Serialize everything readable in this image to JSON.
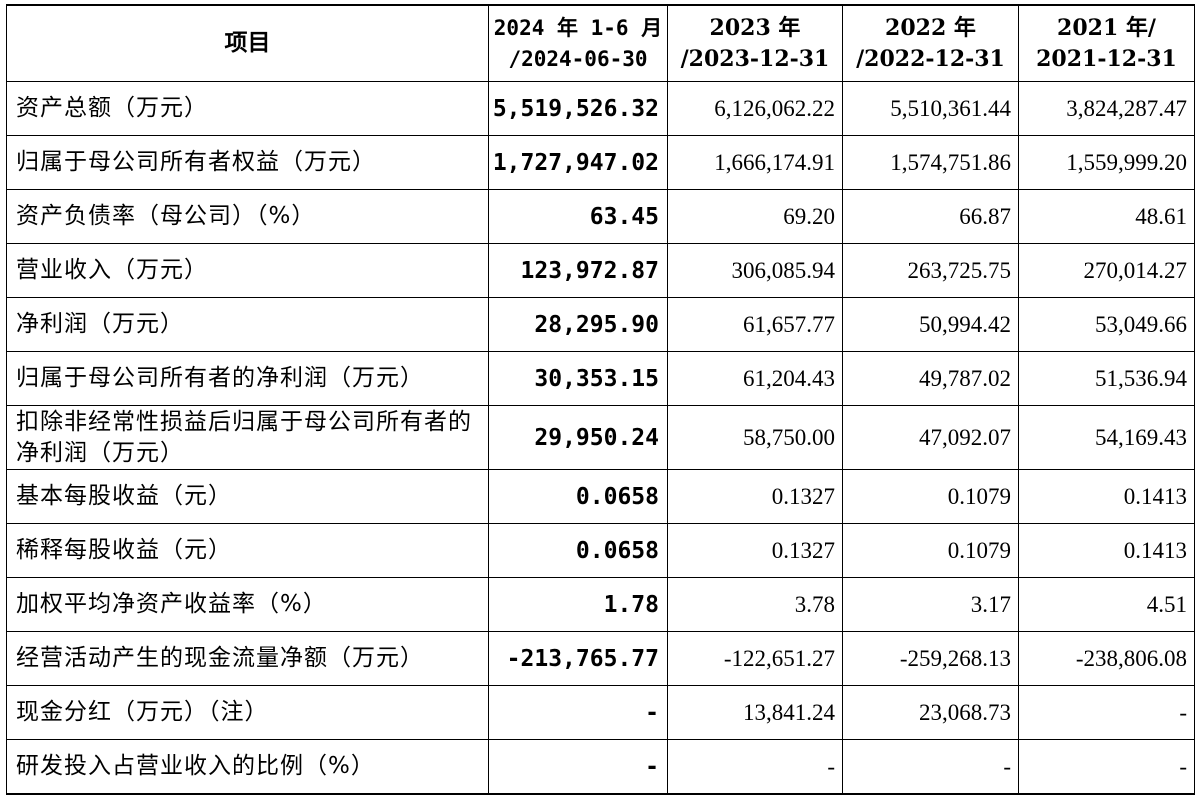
{
  "header": {
    "item": "项目",
    "col1_line1": "2024 年 1-6 月",
    "col1_line2": "/2024-06-30",
    "col2_line1": "2023 年",
    "col2_line2": "/2023-12-31",
    "col3_line1": "2022 年",
    "col3_line2": "/2022-12-31",
    "col4_line1": "2021 年/",
    "col4_line2": "2021-12-31"
  },
  "rows": [
    {
      "label": "资产总额（万元）",
      "v2024h1": "5,519,526.32",
      "v2023": "6,126,062.22",
      "v2022": "5,510,361.44",
      "v2021": "3,824,287.47"
    },
    {
      "label": "归属于母公司所有者权益（万元）",
      "v2024h1": "1,727,947.02",
      "v2023": "1,666,174.91",
      "v2022": "1,574,751.86",
      "v2021": "1,559,999.20"
    },
    {
      "label": "资产负债率（母公司）（%）",
      "v2024h1": "63.45",
      "v2023": "69.20",
      "v2022": "66.87",
      "v2021": "48.61"
    },
    {
      "label": "营业收入（万元）",
      "v2024h1": "123,972.87",
      "v2023": "306,085.94",
      "v2022": "263,725.75",
      "v2021": "270,014.27"
    },
    {
      "label": "净利润（万元）",
      "v2024h1": "28,295.90",
      "v2023": "61,657.77",
      "v2022": "50,994.42",
      "v2021": "53,049.66"
    },
    {
      "label": "归属于母公司所有者的净利润（万元）",
      "v2024h1": "30,353.15",
      "v2023": "61,204.43",
      "v2022": "49,787.02",
      "v2021": "51,536.94"
    },
    {
      "label": "扣除非经常性损益后归属于母公司所有者的净利润（万元）",
      "v2024h1": "29,950.24",
      "v2023": "58,750.00",
      "v2022": "47,092.07",
      "v2021": "54,169.43"
    },
    {
      "label": "基本每股收益（元）",
      "v2024h1": "0.0658",
      "v2023": "0.1327",
      "v2022": "0.1079",
      "v2021": "0.1413"
    },
    {
      "label": "稀释每股收益（元）",
      "v2024h1": "0.0658",
      "v2023": "0.1327",
      "v2022": "0.1079",
      "v2021": "0.1413"
    },
    {
      "label": "加权平均净资产收益率（%）",
      "v2024h1": "1.78",
      "v2023": "3.78",
      "v2022": "3.17",
      "v2021": "4.51"
    },
    {
      "label": "经营活动产生的现金流量净额（万元）",
      "v2024h1": "-213,765.77",
      "v2023": "-122,651.27",
      "v2022": "-259,268.13",
      "v2021": "-238,806.08"
    },
    {
      "label": "现金分红（万元）（注）",
      "v2024h1": "-",
      "v2023": "13,841.24",
      "v2022": "23,068.73",
      "v2021": "-"
    },
    {
      "label": "研发投入占营业收入的比例（%）",
      "v2024h1": "-",
      "v2023": "-",
      "v2022": "-",
      "v2021": "-"
    }
  ]
}
